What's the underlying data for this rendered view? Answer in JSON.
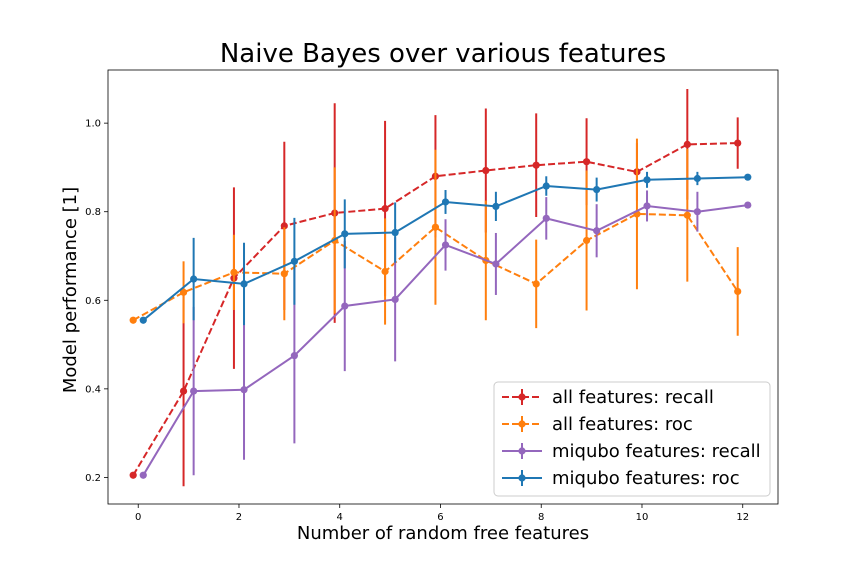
{
  "chart_data": {
    "type": "line",
    "title": "Naive Bayes over various features",
    "xlabel": "Number of random free features",
    "ylabel": "Model performance [1]",
    "xlim": [
      -0.6,
      12.7
    ],
    "ylim": [
      0.14,
      1.12
    ],
    "xticks": [
      0,
      2,
      4,
      6,
      8,
      10,
      12
    ],
    "yticks": [
      0.2,
      0.4,
      0.6,
      0.8,
      1.0
    ],
    "xtick_labels": [
      "0",
      "2",
      "4",
      "6",
      "8",
      "10",
      "12"
    ],
    "ytick_labels": [
      "0.2",
      "0.4",
      "0.6",
      "0.8",
      "1.0"
    ],
    "grid": false,
    "legend_position": "lower-right",
    "series": [
      {
        "name": "all features: recall",
        "color": "#d62728",
        "linestyle": "dashed",
        "x": [
          -0.1,
          0.9,
          1.9,
          2.9,
          3.9,
          4.9,
          5.9,
          6.9,
          7.9,
          8.9,
          9.9,
          10.9,
          11.9
        ],
        "y": [
          0.205,
          0.395,
          0.65,
          0.768,
          0.797,
          0.807,
          0.88,
          0.893,
          0.905,
          0.913,
          0.89,
          0.952,
          0.955
        ],
        "err": [
          0.0,
          0.215,
          0.205,
          0.19,
          0.248,
          0.198,
          0.138,
          0.14,
          0.117,
          0.098,
          0.065,
          0.125,
          0.058
        ]
      },
      {
        "name": "all features: roc",
        "color": "#ff7f0e",
        "linestyle": "dashed",
        "x": [
          -0.1,
          0.9,
          1.9,
          2.9,
          3.9,
          4.9,
          5.9,
          6.9,
          7.9,
          8.9,
          9.9,
          10.9,
          11.9
        ],
        "y": [
          0.555,
          0.618,
          0.663,
          0.66,
          0.735,
          0.665,
          0.765,
          0.69,
          0.637,
          0.735,
          0.795,
          0.792,
          0.62
        ],
        "err": [
          0.0,
          0.07,
          0.085,
          0.105,
          0.165,
          0.12,
          0.175,
          0.135,
          0.1,
          0.158,
          0.17,
          0.15,
          0.1
        ]
      },
      {
        "name": "miqubo features: recall",
        "color": "#9467bd",
        "linestyle": "solid",
        "x": [
          0.1,
          1.1,
          2.1,
          3.1,
          4.1,
          5.1,
          6.1,
          7.1,
          8.1,
          9.1,
          10.1,
          11.1,
          12.1
        ],
        "y": [
          0.205,
          0.395,
          0.398,
          0.475,
          0.587,
          0.602,
          0.725,
          0.682,
          0.785,
          0.757,
          0.813,
          0.8,
          0.815
        ],
        "err": [
          0.0,
          0.19,
          0.158,
          0.198,
          0.147,
          0.14,
          0.058,
          0.07,
          0.048,
          0.06,
          0.035,
          0.045,
          0.0
        ]
      },
      {
        "name": "miqubo features: roc",
        "color": "#1f77b4",
        "linestyle": "solid",
        "x": [
          0.1,
          1.1,
          2.1,
          3.1,
          4.1,
          5.1,
          6.1,
          7.1,
          8.1,
          9.1,
          10.1,
          11.1,
          12.1
        ],
        "y": [
          0.555,
          0.648,
          0.637,
          0.688,
          0.75,
          0.753,
          0.822,
          0.812,
          0.858,
          0.85,
          0.872,
          0.875,
          0.878
        ],
        "err": [
          0.0,
          0.093,
          0.093,
          0.098,
          0.078,
          0.068,
          0.027,
          0.033,
          0.022,
          0.027,
          0.018,
          0.015,
          0.0
        ]
      }
    ]
  }
}
